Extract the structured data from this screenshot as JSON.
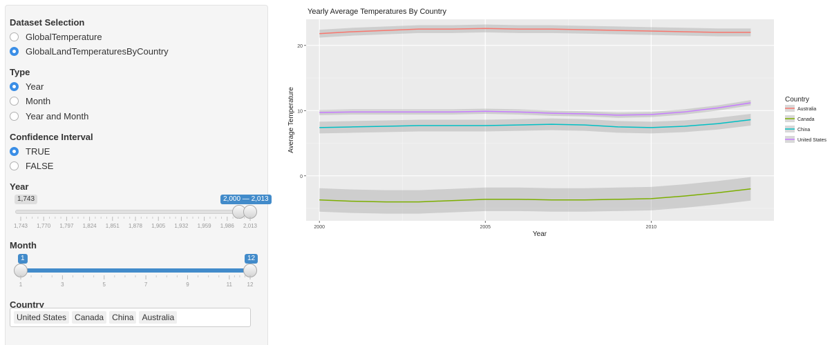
{
  "sidebar": {
    "dataset": {
      "title": "Dataset Selection",
      "options": [
        {
          "label": "GlobalTemperature",
          "checked": false
        },
        {
          "label": "GlobalLandTemperaturesByCountry",
          "checked": true
        }
      ]
    },
    "type": {
      "title": "Type",
      "options": [
        {
          "label": "Year",
          "checked": true
        },
        {
          "label": "Month",
          "checked": false
        },
        {
          "label": "Year and Month",
          "checked": false
        }
      ]
    },
    "confidence": {
      "title": "Confidence Interval",
      "options": [
        {
          "label": "TRUE",
          "checked": true
        },
        {
          "label": "FALSE",
          "checked": false
        }
      ]
    },
    "year_slider": {
      "title": "Year",
      "min_label": "1,743",
      "range_label": "2,000 — 2,013",
      "min": 1743,
      "max": 2013,
      "from": 2000,
      "to": 2013,
      "ticks": [
        "1,743",
        "1,770",
        "1,797",
        "1,824",
        "1,851",
        "1,878",
        "1,905",
        "1,932",
        "1,959",
        "1,986",
        "2,013"
      ]
    },
    "month_slider": {
      "title": "Month",
      "from_label": "1",
      "to_label": "12",
      "min": 1,
      "max": 12,
      "from": 1,
      "to": 12,
      "ticks": [
        "1",
        "3",
        "5",
        "7",
        "9",
        "11",
        "12"
      ]
    },
    "country": {
      "title": "Country",
      "selected": [
        "United States",
        "Canada",
        "China",
        "Australia"
      ]
    }
  },
  "colors": {
    "accent": "#428bca",
    "radio_checked": "#3a8ee6",
    "panel_bg": "#ebebeb"
  },
  "chart_data": {
    "type": "line",
    "title": "Yearly Average Temperatures By Country",
    "xlabel": "Year",
    "ylabel": "Average Temperature",
    "xlim": [
      1999.6,
      2013.7
    ],
    "ylim": [
      -6.9,
      24.0
    ],
    "x_ticks": [
      2000,
      2005,
      2010
    ],
    "y_ticks": [
      0,
      10,
      20
    ],
    "grid": true,
    "legend": {
      "title": "Country",
      "position": "right"
    },
    "series": [
      {
        "name": "Australia",
        "color": "#f8766d",
        "x": [
          2000,
          2001,
          2002,
          2003,
          2004,
          2005,
          2006,
          2007,
          2008,
          2009,
          2010,
          2011,
          2012,
          2013
        ],
        "y": [
          21.8,
          22.1,
          22.3,
          22.5,
          22.5,
          22.6,
          22.5,
          22.5,
          22.4,
          22.3,
          22.2,
          22.1,
          22.0,
          22.0
        ],
        "ci": 0.6
      },
      {
        "name": "Canada",
        "color": "#7cae00",
        "x": [
          2000,
          2001,
          2002,
          2003,
          2004,
          2005,
          2006,
          2007,
          2008,
          2009,
          2010,
          2011,
          2012,
          2013
        ],
        "y": [
          -3.7,
          -3.9,
          -4.0,
          -4.0,
          -3.8,
          -3.6,
          -3.6,
          -3.7,
          -3.7,
          -3.6,
          -3.5,
          -3.1,
          -2.6,
          -2.0
        ],
        "ci": 1.8
      },
      {
        "name": "China",
        "color": "#00bfc4",
        "x": [
          2000,
          2001,
          2002,
          2003,
          2004,
          2005,
          2006,
          2007,
          2008,
          2009,
          2010,
          2011,
          2012,
          2013
        ],
        "y": [
          7.4,
          7.5,
          7.6,
          7.7,
          7.7,
          7.7,
          7.8,
          7.9,
          7.8,
          7.5,
          7.4,
          7.6,
          8.0,
          8.6
        ],
        "ci": 0.9
      },
      {
        "name": "United States",
        "color": "#c77cff",
        "x": [
          2000,
          2001,
          2002,
          2003,
          2004,
          2005,
          2006,
          2007,
          2008,
          2009,
          2010,
          2011,
          2012,
          2013
        ],
        "y": [
          9.7,
          9.8,
          9.8,
          9.8,
          9.8,
          9.9,
          9.8,
          9.6,
          9.5,
          9.3,
          9.4,
          9.8,
          10.4,
          11.2
        ],
        "ci": 0.4
      }
    ]
  }
}
